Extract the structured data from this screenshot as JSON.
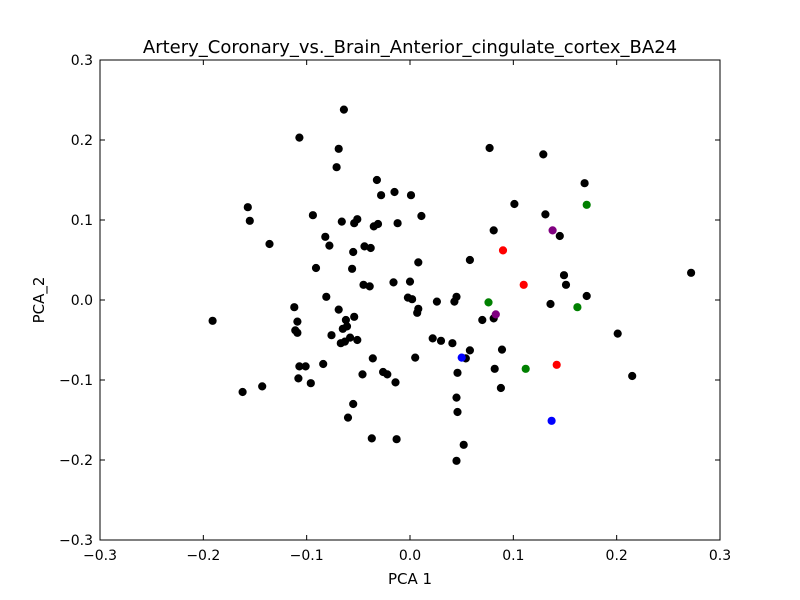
{
  "chart_data": {
    "type": "scatter",
    "title": "Artery_Coronary_vs._Brain_Anterior_cingulate_cortex_BA24",
    "xlabel": "PCA 1",
    "ylabel": "PCA_2",
    "xlim": [
      -0.3,
      0.3
    ],
    "ylim": [
      -0.3,
      0.3
    ],
    "xticks": [
      -0.3,
      -0.2,
      -0.1,
      0.0,
      0.1,
      0.2,
      0.3
    ],
    "yticks": [
      -0.3,
      -0.2,
      -0.1,
      0.0,
      0.1,
      0.2,
      0.3
    ],
    "xtick_labels": [
      "−0.3",
      "−0.2",
      "−0.1",
      "0.0",
      "0.1",
      "0.2",
      "0.3"
    ],
    "ytick_labels": [
      "−0.3",
      "−0.2",
      "−0.1",
      "0.0",
      "0.1",
      "0.2",
      "0.3"
    ],
    "grid": false,
    "legend": "none",
    "series": [
      {
        "color": "#000000",
        "points": [
          [
            -0.064,
            0.238
          ],
          [
            -0.107,
            0.203
          ],
          [
            0.077,
            0.19
          ],
          [
            -0.069,
            0.189
          ],
          [
            0.129,
            0.182
          ],
          [
            -0.071,
            0.166
          ],
          [
            -0.032,
            0.15
          ],
          [
            0.169,
            0.146
          ],
          [
            -0.015,
            0.135
          ],
          [
            -0.028,
            0.131
          ],
          [
            0.001,
            0.131
          ],
          [
            0.101,
            0.12
          ],
          [
            -0.157,
            0.116
          ],
          [
            -0.094,
            0.106
          ],
          [
            0.131,
            0.107
          ],
          [
            0.011,
            0.105
          ],
          [
            -0.155,
            0.099
          ],
          [
            -0.051,
            0.101
          ],
          [
            -0.066,
            0.098
          ],
          [
            -0.054,
            0.096
          ],
          [
            -0.031,
            0.095
          ],
          [
            -0.035,
            0.092
          ],
          [
            -0.012,
            0.096
          ],
          [
            0.081,
            0.087
          ],
          [
            0.145,
            0.08
          ],
          [
            -0.082,
            0.079
          ],
          [
            -0.136,
            0.07
          ],
          [
            -0.078,
            0.068
          ],
          [
            -0.044,
            0.067
          ],
          [
            -0.038,
            0.065
          ],
          [
            -0.055,
            0.06
          ],
          [
            -0.0,
            0.023
          ],
          [
            0.058,
            0.05
          ],
          [
            0.008,
            0.047
          ],
          [
            -0.091,
            0.04
          ],
          [
            -0.056,
            0.039
          ],
          [
            0.149,
            0.031
          ],
          [
            0.272,
            0.034
          ],
          [
            0.151,
            0.019
          ],
          [
            -0.016,
            0.022
          ],
          [
            -0.045,
            0.019
          ],
          [
            -0.039,
            0.017
          ],
          [
            0.171,
            0.005
          ],
          [
            -0.002,
            0.003
          ],
          [
            -0.081,
            0.004
          ],
          [
            0.002,
            0.001
          ],
          [
            0.026,
            -0.002
          ],
          [
            0.045,
            0.004
          ],
          [
            0.043,
            -0.002
          ],
          [
            0.136,
            -0.005
          ],
          [
            -0.112,
            -0.009
          ],
          [
            -0.069,
            -0.012
          ],
          [
            0.008,
            -0.011
          ],
          [
            0.007,
            -0.016
          ],
          [
            -0.191,
            -0.026
          ],
          [
            -0.054,
            -0.021
          ],
          [
            -0.109,
            -0.027
          ],
          [
            -0.062,
            -0.025
          ],
          [
            0.07,
            -0.025
          ],
          [
            0.081,
            -0.023
          ],
          [
            -0.061,
            -0.033
          ],
          [
            -0.065,
            -0.036
          ],
          [
            -0.111,
            -0.038
          ],
          [
            -0.109,
            -0.041
          ],
          [
            -0.076,
            -0.044
          ],
          [
            -0.058,
            -0.047
          ],
          [
            0.022,
            -0.048
          ],
          [
            0.03,
            -0.051
          ],
          [
            0.041,
            -0.054
          ],
          [
            -0.051,
            -0.05
          ],
          [
            -0.063,
            -0.052
          ],
          [
            -0.067,
            -0.054
          ],
          [
            0.201,
            -0.042
          ],
          [
            0.058,
            -0.063
          ],
          [
            0.089,
            -0.062
          ],
          [
            -0.036,
            -0.073
          ],
          [
            0.054,
            -0.073
          ],
          [
            0.005,
            -0.072
          ],
          [
            -0.107,
            -0.083
          ],
          [
            -0.101,
            -0.083
          ],
          [
            -0.084,
            -0.08
          ],
          [
            0.082,
            -0.086
          ],
          [
            -0.026,
            -0.09
          ],
          [
            -0.046,
            -0.093
          ],
          [
            -0.022,
            -0.093
          ],
          [
            0.046,
            -0.091
          ],
          [
            -0.108,
            -0.098
          ],
          [
            0.215,
            -0.095
          ],
          [
            -0.096,
            -0.104
          ],
          [
            -0.014,
            -0.103
          ],
          [
            -0.143,
            -0.108
          ],
          [
            0.088,
            -0.11
          ],
          [
            -0.162,
            -0.115
          ],
          [
            0.045,
            -0.122
          ],
          [
            -0.055,
            -0.13
          ],
          [
            0.046,
            -0.14
          ],
          [
            -0.06,
            -0.147
          ],
          [
            -0.037,
            -0.173
          ],
          [
            -0.013,
            -0.174
          ],
          [
            0.052,
            -0.181
          ],
          [
            0.045,
            -0.201
          ]
        ]
      },
      {
        "color": "#ff0000",
        "points": [
          [
            0.09,
            0.062
          ],
          [
            0.11,
            0.019
          ],
          [
            0.142,
            -0.081
          ]
        ]
      },
      {
        "color": "#008000",
        "points": [
          [
            0.171,
            0.119
          ],
          [
            0.076,
            -0.003
          ],
          [
            0.162,
            -0.009
          ],
          [
            0.112,
            -0.086
          ]
        ]
      },
      {
        "color": "#800080",
        "points": [
          [
            0.138,
            0.087
          ],
          [
            0.083,
            -0.018
          ]
        ]
      },
      {
        "color": "#0000ff",
        "points": [
          [
            0.05,
            -0.072
          ],
          [
            0.137,
            -0.151
          ]
        ]
      }
    ]
  }
}
